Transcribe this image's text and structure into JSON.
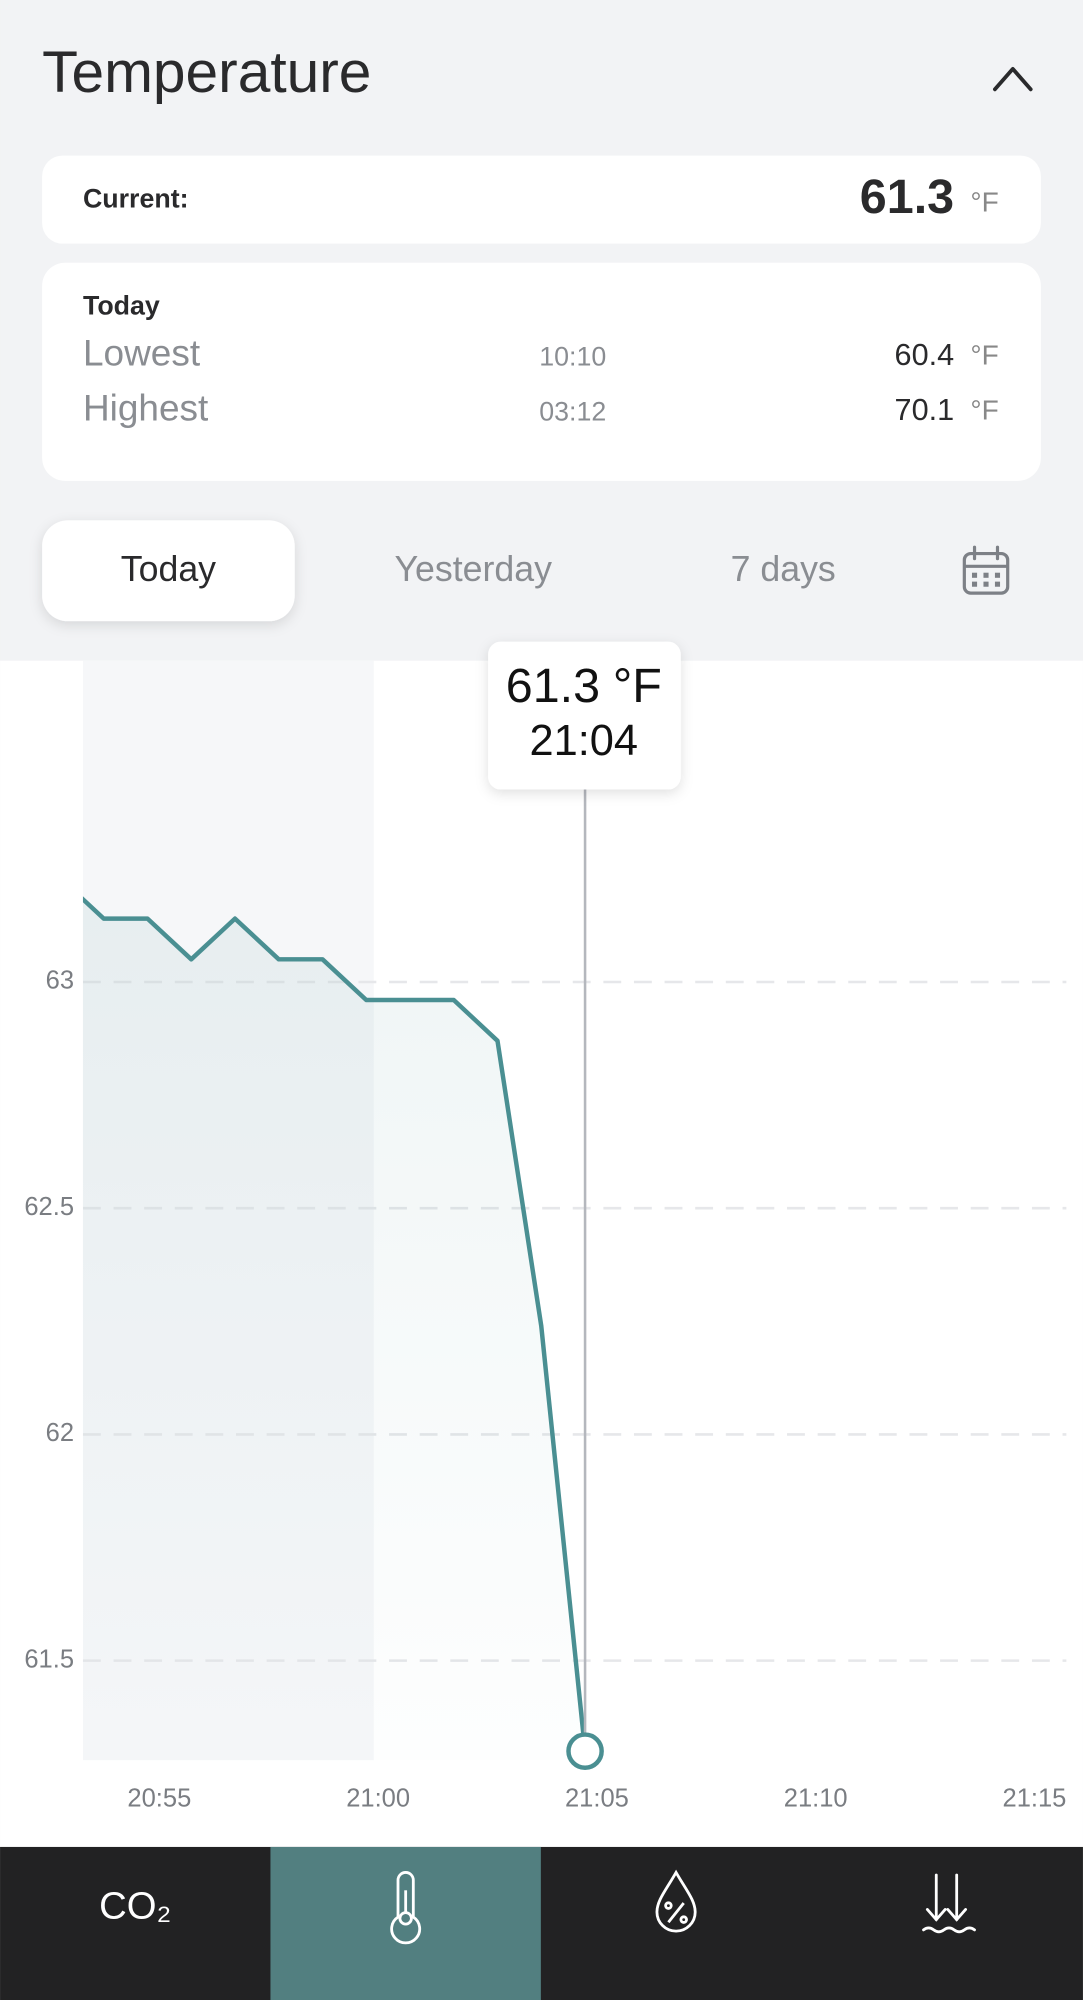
{
  "header": {
    "title": "Temperature"
  },
  "current": {
    "label": "Current:",
    "value": 61.3,
    "unit": "°F"
  },
  "today": {
    "title": "Today",
    "rows": [
      {
        "label": "Lowest",
        "time": "10:10",
        "value": 60.4,
        "unit": "°F"
      },
      {
        "label": "Highest",
        "time": "03:12",
        "value": 70.1,
        "unit": "°F"
      }
    ]
  },
  "tabs": [
    "Today",
    "Yesterday",
    "7 days"
  ],
  "chart_data": {
    "type": "line",
    "x": [
      "20:52",
      "20:53",
      "20:54",
      "20:55",
      "20:56",
      "20:57",
      "20:58",
      "20:59",
      "21:00",
      "21:01",
      "21:02",
      "21:03",
      "21:04"
    ],
    "values": [
      63.23,
      63.14,
      63.14,
      63.05,
      63.14,
      63.05,
      63.05,
      62.96,
      62.96,
      62.96,
      62.87,
      62.24,
      61.3
    ],
    "unit": "°F",
    "color": "#4a8f92",
    "xlim": [
      "20:52",
      "21:15"
    ],
    "xticks": [
      "20:55",
      "21:00",
      "21:05",
      "21:10",
      "21:15"
    ],
    "ylim": [
      61.28,
      63.71
    ],
    "yticks": [
      61.5,
      62,
      62.5,
      63
    ],
    "grid": true
  },
  "nav": [
    "CO₂"
  ]
}
